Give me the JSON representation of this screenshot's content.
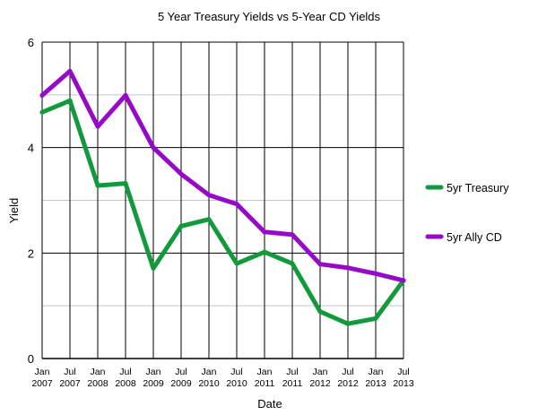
{
  "chart_data": {
    "type": "line",
    "title": "5 Year Treasury Yields vs 5-Year CD Yields",
    "xlabel": "Date",
    "ylabel": "Yield",
    "ylim": [
      0,
      6
    ],
    "yticks": [
      "0",
      "2",
      "4",
      "6"
    ],
    "grid": true,
    "legend_position": "right",
    "categories": [
      [
        "Jan",
        "2007"
      ],
      [
        "Jul",
        "2007"
      ],
      [
        "Jan",
        "2008"
      ],
      [
        "Jul",
        "2008"
      ],
      [
        "Jan",
        "2009"
      ],
      [
        "Jul",
        "2009"
      ],
      [
        "Jan",
        "2010"
      ],
      [
        "Jul",
        "2010"
      ],
      [
        "Jan",
        "2011"
      ],
      [
        "Jul",
        "2011"
      ],
      [
        "Jan",
        "2012"
      ],
      [
        "Jul",
        "2012"
      ],
      [
        "Jan",
        "2013"
      ],
      [
        "Jul",
        "2013"
      ]
    ],
    "series": [
      {
        "name": "5yr Treasury",
        "color": "#109a3b",
        "values": [
          4.67,
          4.89,
          3.28,
          3.32,
          1.71,
          2.51,
          2.64,
          1.8,
          2.02,
          1.8,
          0.89,
          0.66,
          0.76,
          1.48
        ]
      },
      {
        "name": "5yr Ally CD",
        "color": "#9709c9",
        "values": [
          4.99,
          5.45,
          4.4,
          4.99,
          4.0,
          3.5,
          3.1,
          2.93,
          2.4,
          2.35,
          1.79,
          1.72,
          1.61,
          1.48
        ]
      }
    ]
  }
}
